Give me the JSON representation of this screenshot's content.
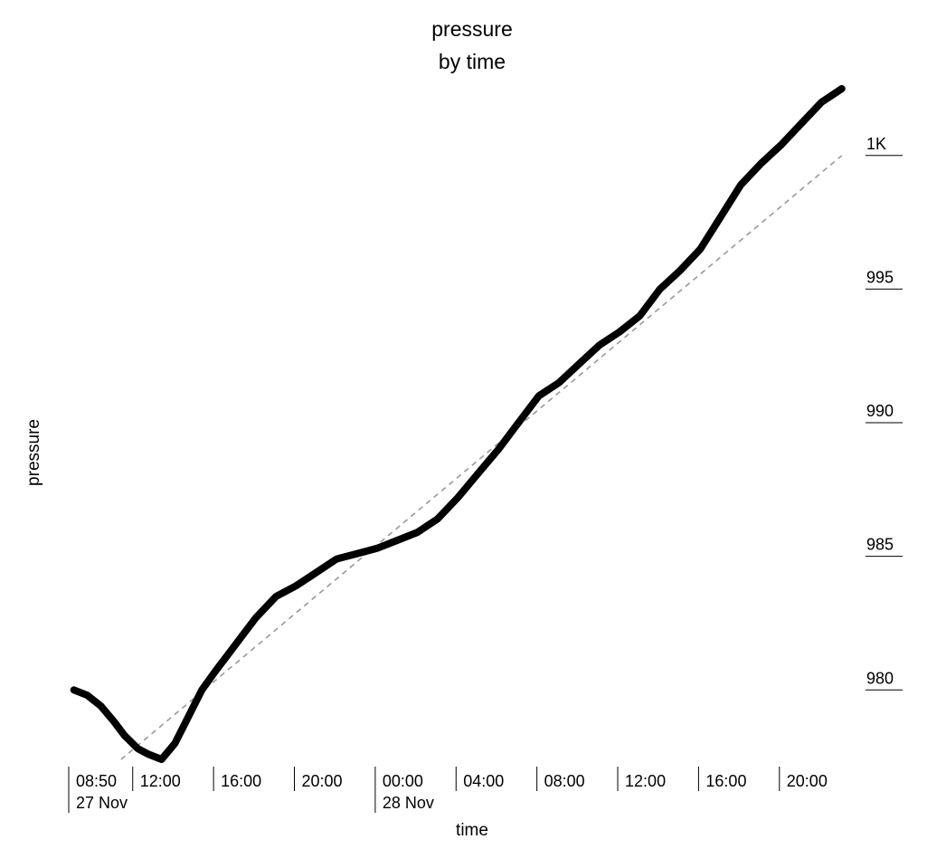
{
  "chart_data": {
    "type": "line",
    "title": "pressure",
    "subtitle": "by time",
    "xlabel": "time",
    "ylabel": "pressure",
    "ylim": [
      977.3,
      1002.5
    ],
    "xlim": [
      "2023-11-27T08:50",
      "2023-11-28T23:30"
    ],
    "y_ticks": [
      {
        "value": 1000,
        "label": "1K"
      },
      {
        "value": 995,
        "label": "995"
      },
      {
        "value": 990,
        "label": "990"
      },
      {
        "value": 985,
        "label": "985"
      },
      {
        "value": 980,
        "label": "980"
      }
    ],
    "x_ticks": [
      {
        "t": "2023-11-27T08:50",
        "label": "08:50",
        "sublabel": "27 Nov"
      },
      {
        "t": "2023-11-27T12:00",
        "label": "12:00",
        "sublabel": ""
      },
      {
        "t": "2023-11-27T16:00",
        "label": "16:00",
        "sublabel": ""
      },
      {
        "t": "2023-11-27T20:00",
        "label": "20:00",
        "sublabel": ""
      },
      {
        "t": "2023-11-28T00:00",
        "label": "00:00",
        "sublabel": "28 Nov"
      },
      {
        "t": "2023-11-28T04:00",
        "label": "04:00",
        "sublabel": ""
      },
      {
        "t": "2023-11-28T08:00",
        "label": "08:00",
        "sublabel": ""
      },
      {
        "t": "2023-11-28T12:00",
        "label": "12:00",
        "sublabel": ""
      },
      {
        "t": "2023-11-28T16:00",
        "label": "16:00",
        "sublabel": ""
      },
      {
        "t": "2023-11-28T20:00",
        "label": "20:00",
        "sublabel": ""
      }
    ],
    "series": [
      {
        "x": [
          "2023-11-27T09:00",
          "2023-11-27T09:40",
          "2023-11-27T10:20",
          "2023-11-27T11:00",
          "2023-11-27T11:30",
          "2023-11-27T12:10",
          "2023-11-27T12:40",
          "2023-11-27T13:20",
          "2023-11-27T14:00",
          "2023-11-27T14:40",
          "2023-11-27T15:20",
          "2023-11-27T16:00",
          "2023-11-27T17:00",
          "2023-11-27T18:00",
          "2023-11-27T19:00",
          "2023-11-27T20:00",
          "2023-11-27T21:00",
          "2023-11-27T22:00",
          "2023-11-27T23:00",
          "2023-11-28T00:00",
          "2023-11-28T01:00",
          "2023-11-28T02:00",
          "2023-11-28T03:00",
          "2023-11-28T04:00",
          "2023-11-28T05:00",
          "2023-11-28T06:00",
          "2023-11-28T07:00",
          "2023-11-28T08:00",
          "2023-11-28T09:00",
          "2023-11-28T10:00",
          "2023-11-28T11:00",
          "2023-11-28T12:00",
          "2023-11-28T13:00",
          "2023-11-28T14:00",
          "2023-11-28T15:00",
          "2023-11-28T16:00",
          "2023-11-28T17:00",
          "2023-11-28T18:00",
          "2023-11-28T19:00",
          "2023-11-28T20:00",
          "2023-11-28T21:00",
          "2023-11-28T22:00",
          "2023-11-28T23:00"
        ],
        "y": [
          980.0,
          979.8,
          979.4,
          978.8,
          978.3,
          977.8,
          977.6,
          977.4,
          978.0,
          979.0,
          980.0,
          980.7,
          981.7,
          982.7,
          983.5,
          983.9,
          984.4,
          984.9,
          985.1,
          985.3,
          985.6,
          985.9,
          986.4,
          987.2,
          988.1,
          989.0,
          990.0,
          991.0,
          991.5,
          992.2,
          992.9,
          993.4,
          994.0,
          995.0,
          995.7,
          996.5,
          997.7,
          998.9,
          999.7,
          1000.4,
          1001.2,
          1002.0,
          1002.5
        ]
      }
    ],
    "trendline": {
      "style": "dashed",
      "x": [
        "2023-11-27T11:20",
        "2023-11-28T23:00"
      ],
      "y": [
        977.4,
        1000.0
      ]
    },
    "grid": false,
    "legend": "none"
  }
}
